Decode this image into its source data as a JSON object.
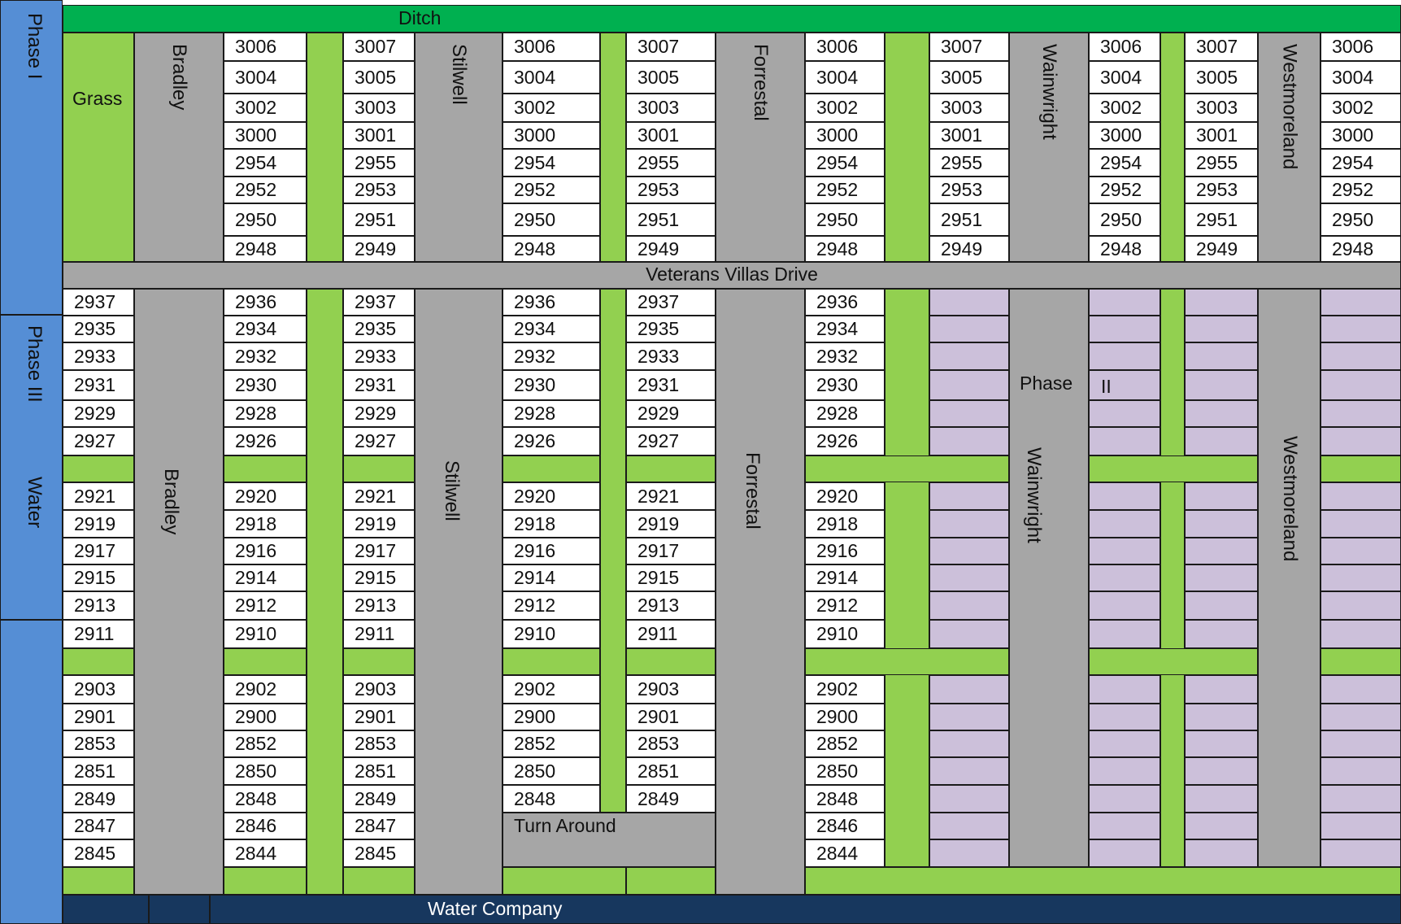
{
  "labels": {
    "ditch": "Ditch",
    "grass": "Grass",
    "drive": "Veterans Villas Drive",
    "water_company": "Water Company",
    "turn_around": "Turn Around",
    "phase_one": "Phase I",
    "phase_three": "Phase III",
    "water": "Water",
    "phase_two_a": "Phase",
    "phase_two_b": "II"
  },
  "streets": {
    "bradley": "Bradley",
    "stilwell": "Stilwell",
    "forrestal": "Forrestal",
    "wainwright": "Wainwright",
    "westmoreland": "Westmoreland"
  },
  "lots": {
    "even_top": [
      "3006",
      "3004",
      "3002",
      "3000",
      "2954",
      "2952",
      "2950",
      "2948"
    ],
    "odd_top": [
      "3007",
      "3005",
      "3003",
      "3001",
      "2955",
      "2953",
      "2951",
      "2949"
    ],
    "odd_bottom": [
      "2937",
      "2935",
      "2933",
      "2931",
      "2929",
      "2927",
      "",
      "2921",
      "2919",
      "2917",
      "2915",
      "2913",
      "2911",
      "",
      "2903",
      "2901",
      "2853",
      "2851",
      "2849",
      "2847",
      "2845"
    ],
    "even_bottom": [
      "2936",
      "2934",
      "2932",
      "2930",
      "2928",
      "2926",
      "",
      "2920",
      "2918",
      "2916",
      "2914",
      "2912",
      "2910",
      "",
      "2902",
      "2900",
      "2852",
      "2850",
      "2848",
      "2846",
      "2844"
    ]
  },
  "colors": {
    "ditch": "#00b050",
    "grass": "#92d050",
    "street": "#a6a6a6",
    "phase": "#558ed5",
    "phase_two_lot": "#ccc0da",
    "water_company": "#17375e"
  }
}
